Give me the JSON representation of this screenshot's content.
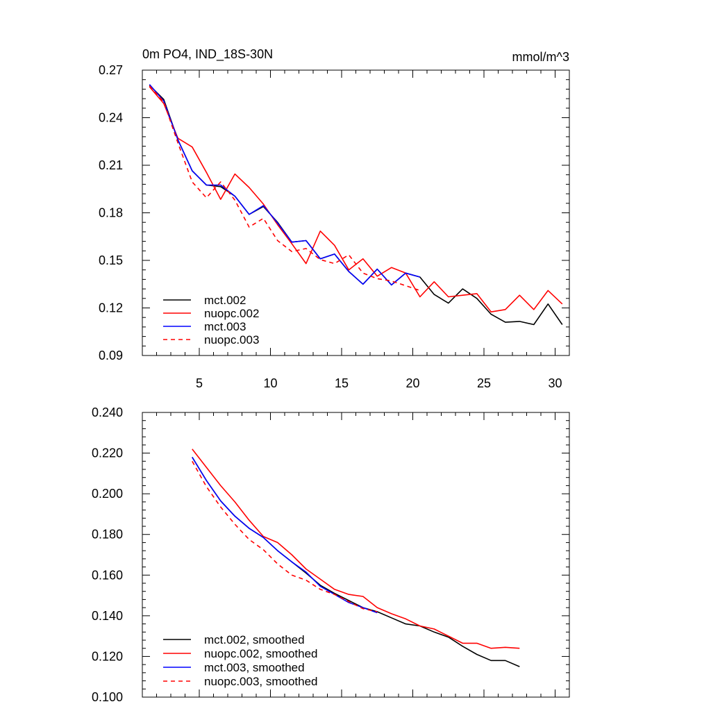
{
  "chart_data": [
    {
      "type": "line",
      "title": "0m PO4, IND_18S-30N",
      "units": "mmol/m^3",
      "xlim": [
        1,
        31
      ],
      "ylim": [
        0.09,
        0.27
      ],
      "x_ticks": [
        5,
        10,
        15,
        20,
        25,
        30
      ],
      "x_tick_labels": [
        "5",
        "10",
        "15",
        "20",
        "25",
        "30"
      ],
      "y_ticks": [
        0.09,
        0.12,
        0.15,
        0.18,
        0.21,
        0.24,
        0.27
      ],
      "y_tick_labels": [
        "0.09",
        "0.12",
        "0.15",
        "0.18",
        "0.21",
        "0.24",
        "0.27"
      ],
      "legend_position": "bottom-left",
      "series": [
        {
          "name": "mct.002",
          "color": "#000000",
          "dash": "solid",
          "x": [
            1.5,
            2.5,
            3.5,
            4.5,
            5.5,
            6.5,
            7.5,
            8.5,
            9.5,
            10.5,
            11.5,
            12.5,
            13.5,
            14.5,
            15.5,
            16.5,
            17.5,
            18.5,
            19.5,
            20.5,
            21.5,
            22.5,
            23.5,
            24.5,
            25.5,
            26.5,
            27.5,
            28.5,
            29.5,
            30.5
          ],
          "y": [
            0.2605,
            0.2515,
            0.226,
            0.2065,
            0.1975,
            0.1965,
            0.1905,
            0.179,
            0.184,
            0.174,
            0.1615,
            0.1625,
            0.151,
            0.154,
            0.143,
            0.135,
            0.1445,
            0.1345,
            0.142,
            0.1395,
            0.1285,
            0.123,
            0.132,
            0.126,
            0.116,
            0.111,
            0.1115,
            0.1095,
            0.1225,
            0.1095
          ]
        },
        {
          "name": "nuopc.002",
          "color": "#ff0000",
          "dash": "solid",
          "x": [
            1.5,
            2.5,
            3.5,
            4.5,
            5.5,
            6.5,
            7.5,
            8.5,
            9.5,
            10.5,
            11.5,
            12.5,
            13.5,
            14.5,
            15.5,
            16.5,
            17.5,
            18.5,
            19.5,
            20.5,
            21.5,
            22.5,
            23.5,
            24.5,
            25.5,
            26.5,
            27.5,
            28.5,
            29.5,
            30.5
          ],
          "y": [
            0.2595,
            0.249,
            0.227,
            0.2215,
            0.2055,
            0.1885,
            0.2045,
            0.196,
            0.1855,
            0.1725,
            0.1605,
            0.148,
            0.1685,
            0.1595,
            0.144,
            0.151,
            0.14,
            0.1455,
            0.142,
            0.127,
            0.1365,
            0.127,
            0.128,
            0.129,
            0.1175,
            0.119,
            0.128,
            0.119,
            0.131,
            0.1225
          ]
        },
        {
          "name": "mct.003",
          "color": "#0000ff",
          "dash": "solid",
          "x": [
            1.5,
            2.5,
            3.5,
            4.5,
            5.5,
            6.5,
            7.5,
            8.5,
            9.5,
            10.5,
            11.5,
            12.5,
            13.5,
            14.5,
            15.5,
            16.5,
            17.5,
            18.5,
            19.5,
            20.5
          ],
          "y": [
            0.261,
            0.2505,
            0.226,
            0.2065,
            0.1975,
            0.1975,
            0.1905,
            0.179,
            0.1845,
            0.1735,
            0.1615,
            0.1625,
            0.151,
            0.154,
            0.143,
            0.135,
            0.1445,
            0.1345,
            0.142,
            0.1395
          ]
        },
        {
          "name": "nuopc.003",
          "color": "#ff0000",
          "dash": "dashed",
          "x": [
            1.5,
            2.5,
            3.5,
            4.5,
            5.5,
            6.5,
            7.5,
            8.5,
            9.5,
            10.5,
            11.5,
            12.5,
            13.5,
            14.5,
            15.5,
            16.5,
            17.5,
            18.5,
            19.5,
            20.5
          ],
          "y": [
            0.26,
            0.25,
            0.224,
            0.1995,
            0.1895,
            0.1995,
            0.188,
            0.171,
            0.1765,
            0.1625,
            0.1555,
            0.1575,
            0.1505,
            0.148,
            0.1535,
            0.142,
            0.1385,
            0.137,
            0.134,
            0.131
          ]
        }
      ]
    },
    {
      "type": "line",
      "xlim": [
        1,
        31
      ],
      "ylim": [
        0.1,
        0.24
      ],
      "x_ticks": [
        5,
        10,
        15,
        20,
        25,
        30
      ],
      "x_tick_labels": [],
      "y_ticks": [
        0.1,
        0.12,
        0.14,
        0.16,
        0.18,
        0.2,
        0.22,
        0.24
      ],
      "y_tick_labels": [
        "0.100",
        "0.120",
        "0.140",
        "0.160",
        "0.180",
        "0.200",
        "0.220",
        "0.240"
      ],
      "legend_position": "bottom-left",
      "series": [
        {
          "name": "mct.002, smoothed",
          "color": "#000000",
          "dash": "solid",
          "x": [
            4.5,
            5.5,
            6.5,
            7.5,
            8.5,
            9.5,
            10.5,
            11.5,
            12.5,
            13.5,
            14.5,
            15.5,
            16.5,
            17.5,
            18.5,
            19.5,
            20.5,
            21.5,
            22.5,
            23.5,
            24.5,
            25.5,
            26.5,
            27.5
          ],
          "y": [
            0.218,
            0.2065,
            0.1965,
            0.189,
            0.183,
            0.1785,
            0.172,
            0.1665,
            0.161,
            0.155,
            0.151,
            0.1475,
            0.144,
            0.142,
            0.139,
            0.136,
            0.135,
            0.132,
            0.1295,
            0.125,
            0.121,
            0.118,
            0.118,
            0.115
          ]
        },
        {
          "name": "nuopc.002, smoothed",
          "color": "#ff0000",
          "dash": "solid",
          "x": [
            4.5,
            5.5,
            6.5,
            7.5,
            8.5,
            9.5,
            10.5,
            11.5,
            12.5,
            13.5,
            14.5,
            15.5,
            16.5,
            17.5,
            18.5,
            19.5,
            20.5,
            21.5,
            22.5,
            23.5,
            24.5,
            25.5,
            26.5,
            27.5
          ],
          "y": [
            0.222,
            0.213,
            0.204,
            0.196,
            0.187,
            0.179,
            0.176,
            0.17,
            0.163,
            0.158,
            0.153,
            0.1505,
            0.1495,
            0.144,
            0.141,
            0.1385,
            0.135,
            0.1335,
            0.13,
            0.1265,
            0.1265,
            0.124,
            0.1245,
            0.124
          ]
        },
        {
          "name": "mct.003, smoothed",
          "color": "#0000ff",
          "dash": "solid",
          "x": [
            4.5,
            5.5,
            6.5,
            7.5,
            8.5,
            9.5,
            10.5,
            11.5,
            12.5,
            13.5,
            14.5,
            15.5,
            16.5,
            17.5
          ],
          "y": [
            0.218,
            0.2065,
            0.1965,
            0.189,
            0.183,
            0.1785,
            0.172,
            0.1665,
            0.1615,
            0.1545,
            0.1505,
            0.1465,
            0.144,
            0.1415
          ]
        },
        {
          "name": "nuopc.003, smoothed",
          "color": "#ff0000",
          "dash": "dashed",
          "x": [
            4.5,
            5.5,
            6.5,
            7.5,
            8.5,
            9.5,
            10.5,
            11.5,
            12.5,
            13.5,
            14.5,
            15.5,
            16.5,
            17.5
          ],
          "y": [
            0.216,
            0.2035,
            0.1935,
            0.185,
            0.1775,
            0.1725,
            0.1655,
            0.16,
            0.1575,
            0.153,
            0.1505,
            0.147,
            0.1435,
            0.142
          ]
        }
      ]
    }
  ]
}
